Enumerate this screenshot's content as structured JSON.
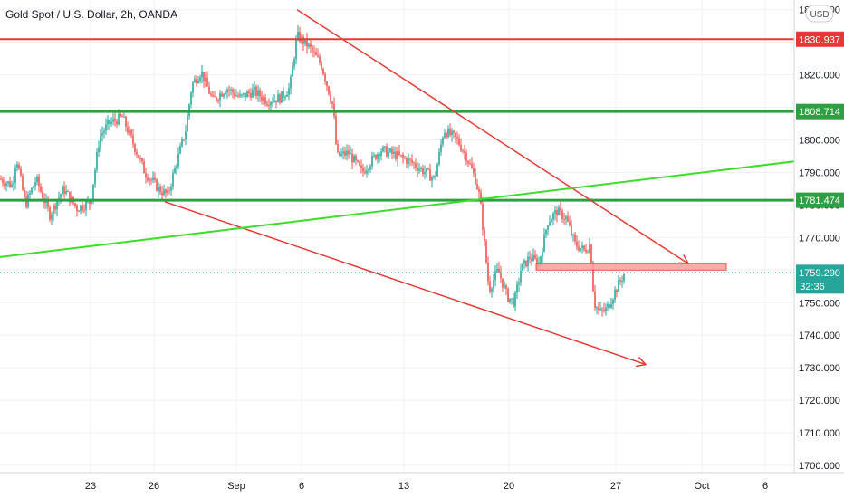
{
  "header": {
    "title": "Gold Spot / U.S. Dollar, 2h, OANDA",
    "currency": "USD"
  },
  "colors": {
    "up": "#26a69a",
    "down": "#ef5350",
    "support": "#2ea043",
    "resistance": "#e53935",
    "trend_green": "#3fdc2b",
    "grid": "#eef0f3",
    "zone_fill": "#f4a09a"
  },
  "price_badges": [
    {
      "label": "1830.937",
      "color": "#e53935",
      "price": 1830.937
    },
    {
      "label": "1808.714",
      "color": "#2ea043",
      "price": 1808.714
    },
    {
      "label": "1781.474",
      "color": "#2ea043",
      "price": 1781.474
    },
    {
      "label": "1759.290",
      "color": "#26a69a",
      "price": 1759.29
    }
  ],
  "countdown": "32:36",
  "chart_data": {
    "type": "candlestick",
    "title": "Gold Spot / U.S. Dollar, 2h, OANDA",
    "y_ticks": [
      "1700.000",
      "1710.000",
      "1720.000",
      "1730.000",
      "1740.000",
      "1750.000",
      "1760.000",
      "1770.000",
      "1780.000",
      "1790.000",
      "1800.000",
      "1810.000",
      "1820.000",
      "1830.000",
      "1840.000"
    ],
    "ylim": [
      1700,
      1846
    ],
    "x_ticks": [
      {
        "label": "23",
        "idx": 100
      },
      {
        "label": "26",
        "idx": 170
      },
      {
        "label": "Sep",
        "idx": 261
      },
      {
        "label": "6",
        "idx": 333
      },
      {
        "label": "13",
        "idx": 446
      },
      {
        "label": "20",
        "idx": 562
      },
      {
        "label": "27",
        "idx": 680
      },
      {
        "label": "Oct",
        "idx": 775
      },
      {
        "label": "6",
        "idx": 845
      }
    ],
    "x_domain": [
      0,
      925
    ],
    "candle_count": 345,
    "price_path": [
      [
        0,
        1788
      ],
      [
        14,
        1786
      ],
      [
        18,
        1795
      ],
      [
        28,
        1780
      ],
      [
        40,
        1788
      ],
      [
        55,
        1777
      ],
      [
        70,
        1785
      ],
      [
        85,
        1779
      ],
      [
        100,
        1781
      ],
      [
        110,
        1801
      ],
      [
        120,
        1805
      ],
      [
        135,
        1807
      ],
      [
        150,
        1797
      ],
      [
        160,
        1790
      ],
      [
        175,
        1785
      ],
      [
        185,
        1783
      ],
      [
        195,
        1793
      ],
      [
        205,
        1803
      ],
      [
        212,
        1817
      ],
      [
        222,
        1821
      ],
      [
        235,
        1812
      ],
      [
        250,
        1816
      ],
      [
        265,
        1813
      ],
      [
        280,
        1815
      ],
      [
        295,
        1812
      ],
      [
        310,
        1813
      ],
      [
        320,
        1816
      ],
      [
        328,
        1832
      ],
      [
        340,
        1829
      ],
      [
        355,
        1823
      ],
      [
        368,
        1810
      ],
      [
        372,
        1795
      ],
      [
        385,
        1796
      ],
      [
        400,
        1790
      ],
      [
        420,
        1797
      ],
      [
        440,
        1795
      ],
      [
        455,
        1793
      ],
      [
        470,
        1790
      ],
      [
        480,
        1788
      ],
      [
        490,
        1803
      ],
      [
        505,
        1800
      ],
      [
        515,
        1795
      ],
      [
        525,
        1788
      ],
      [
        530,
        1782
      ],
      [
        535,
        1768
      ],
      [
        540,
        1754
      ],
      [
        550,
        1760
      ],
      [
        560,
        1752
      ],
      [
        568,
        1750
      ],
      [
        575,
        1760
      ],
      [
        585,
        1764
      ],
      [
        595,
        1762
      ],
      [
        605,
        1775
      ],
      [
        615,
        1778
      ],
      [
        625,
        1776
      ],
      [
        635,
        1768
      ],
      [
        645,
        1766
      ],
      [
        652,
        1768
      ],
      [
        656,
        1750
      ],
      [
        662,
        1747
      ],
      [
        670,
        1748
      ],
      [
        680,
        1754
      ],
      [
        690,
        1759.29
      ]
    ],
    "horizontal_levels": [
      {
        "price": 1830.937,
        "color": "resistance"
      },
      {
        "price": 1808.714,
        "color": "support"
      },
      {
        "price": 1781.474,
        "color": "support"
      }
    ],
    "trendlines": [
      {
        "from": [
          328,
          1840
        ],
        "to": [
          760,
          1762
        ],
        "color": "resistance",
        "arrow": true
      },
      {
        "from": [
          182,
          1781
        ],
        "to": [
          713,
          1731
        ],
        "color": "resistance",
        "arrow": true
      },
      {
        "from": [
          0,
          1764
        ],
        "to": [
          925,
          1795
        ],
        "color": "trend_green",
        "arrow": false
      }
    ],
    "zone": {
      "x0": 592,
      "x1": 802,
      "y0": 1760,
      "y1": 1762
    },
    "last_price": 1759.29,
    "grid": true
  }
}
